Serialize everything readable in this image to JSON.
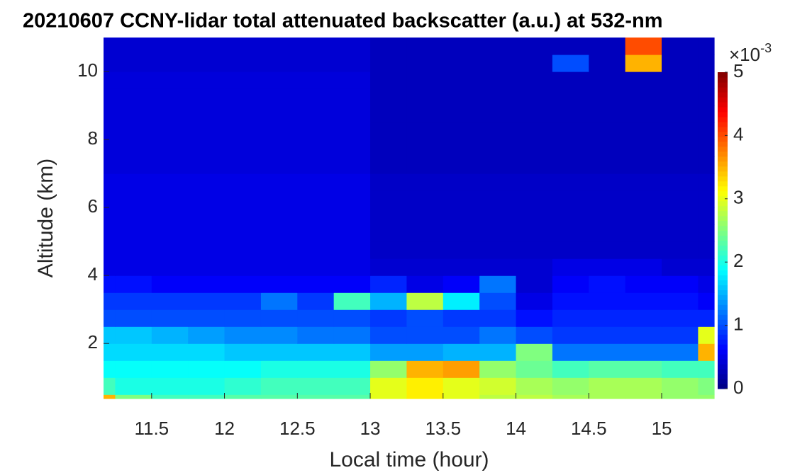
{
  "chart_data": {
    "type": "heatmap",
    "title": "20210607 CCNY-lidar total attenuated backscatter (a.u.) at 532-nm",
    "x_label": "Local time (hour)",
    "y_label": "Altitude (km)",
    "xlim": [
      11.17,
      15.36
    ],
    "ylim": [
      0.38,
      11
    ],
    "xticks": [
      11.5,
      12,
      12.5,
      13,
      13.5,
      14,
      14.5,
      15
    ],
    "yticks": [
      2,
      4,
      6,
      8,
      10
    ],
    "x_edges": [
      11.17,
      11.25,
      11.5,
      11.75,
      12,
      12.25,
      12.5,
      12.75,
      13,
      13.25,
      13.5,
      13.75,
      14,
      14.25,
      14.5,
      14.75,
      15,
      15.25,
      15.36
    ],
    "y_edges": [
      0.38,
      0.5,
      1,
      1.5,
      2,
      2.5,
      3,
      3.5,
      4,
      4.5,
      5,
      5.5,
      6,
      6.5,
      7,
      7.5,
      8,
      8.5,
      9,
      9.5,
      10,
      10.5,
      11
    ],
    "values": [
      [
        3.5,
        2.5,
        2.2,
        2.2,
        2.3,
        2.3,
        2.3,
        2.3,
        3.0,
        3.2,
        3.0,
        2.8,
        2.8,
        2.7,
        2.7,
        2.7,
        2.6,
        2.6
      ],
      [
        2.2,
        2.0,
        2.0,
        2.0,
        2.1,
        2.2,
        2.2,
        2.2,
        3.0,
        3.2,
        3.0,
        2.9,
        2.7,
        2.6,
        2.7,
        2.7,
        2.6,
        2.5
      ],
      [
        1.9,
        1.9,
        1.9,
        1.9,
        1.9,
        2.0,
        2.0,
        2.0,
        2.6,
        3.5,
        3.6,
        2.6,
        2.4,
        2.2,
        2.3,
        2.3,
        2.2,
        2.2
      ],
      [
        1.7,
        1.7,
        1.7,
        1.7,
        1.6,
        1.6,
        1.6,
        1.6,
        1.4,
        1.4,
        1.5,
        1.5,
        2.5,
        1.2,
        1.2,
        1.2,
        1.2,
        3.5
      ],
      [
        1.6,
        1.6,
        1.5,
        1.4,
        1.3,
        1.3,
        1.2,
        1.2,
        1.0,
        1.0,
        1.0,
        1.2,
        1.0,
        0.9,
        0.9,
        0.9,
        0.9,
        3.0
      ],
      [
        1.0,
        1.0,
        1.0,
        1.0,
        1.0,
        1.0,
        1.0,
        1.0,
        0.9,
        1.0,
        0.9,
        0.9,
        0.7,
        0.8,
        0.8,
        0.8,
        0.8,
        0.8
      ],
      [
        0.9,
        0.9,
        0.9,
        0.9,
        0.9,
        1.2,
        0.9,
        2.2,
        1.5,
        2.8,
        1.8,
        1.0,
        0.5,
        0.7,
        0.7,
        0.7,
        0.7,
        0.6
      ],
      [
        0.7,
        0.7,
        0.6,
        0.6,
        0.6,
        0.6,
        0.6,
        0.6,
        0.8,
        0.5,
        0.6,
        1.2,
        0.4,
        0.6,
        0.7,
        0.6,
        0.6,
        0.5
      ],
      [
        0.5,
        0.5,
        0.5,
        0.5,
        0.5,
        0.5,
        0.5,
        0.5,
        0.4,
        0.4,
        0.4,
        0.4,
        0.4,
        0.5,
        0.5,
        0.5,
        0.4,
        0.4
      ],
      [
        0.5,
        0.5,
        0.5,
        0.5,
        0.5,
        0.5,
        0.5,
        0.5,
        0.35,
        0.35,
        0.35,
        0.35,
        0.35,
        0.35,
        0.35,
        0.35,
        0.35,
        0.35
      ],
      [
        0.5,
        0.5,
        0.5,
        0.5,
        0.5,
        0.5,
        0.5,
        0.5,
        0.35,
        0.35,
        0.35,
        0.35,
        0.35,
        0.35,
        0.35,
        0.35,
        0.35,
        0.35
      ],
      [
        0.5,
        0.5,
        0.5,
        0.5,
        0.5,
        0.5,
        0.5,
        0.5,
        0.35,
        0.35,
        0.35,
        0.35,
        0.35,
        0.35,
        0.35,
        0.35,
        0.35,
        0.35
      ],
      [
        0.5,
        0.5,
        0.5,
        0.5,
        0.5,
        0.5,
        0.5,
        0.5,
        0.35,
        0.35,
        0.35,
        0.35,
        0.35,
        0.35,
        0.35,
        0.35,
        0.35,
        0.35
      ],
      [
        0.5,
        0.5,
        0.5,
        0.5,
        0.5,
        0.5,
        0.5,
        0.5,
        0.35,
        0.35,
        0.35,
        0.35,
        0.35,
        0.35,
        0.35,
        0.35,
        0.35,
        0.35
      ],
      [
        0.45,
        0.45,
        0.45,
        0.45,
        0.45,
        0.45,
        0.45,
        0.45,
        0.3,
        0.3,
        0.3,
        0.3,
        0.3,
        0.3,
        0.3,
        0.3,
        0.3,
        0.3
      ],
      [
        0.45,
        0.45,
        0.45,
        0.45,
        0.45,
        0.45,
        0.45,
        0.45,
        0.3,
        0.3,
        0.3,
        0.3,
        0.3,
        0.3,
        0.3,
        0.3,
        0.3,
        0.3
      ],
      [
        0.45,
        0.45,
        0.45,
        0.45,
        0.45,
        0.45,
        0.45,
        0.45,
        0.3,
        0.3,
        0.3,
        0.3,
        0.3,
        0.3,
        0.3,
        0.3,
        0.3,
        0.3
      ],
      [
        0.45,
        0.45,
        0.45,
        0.45,
        0.45,
        0.45,
        0.45,
        0.45,
        0.3,
        0.3,
        0.3,
        0.3,
        0.3,
        0.3,
        0.3,
        0.3,
        0.3,
        0.3
      ],
      [
        0.45,
        0.45,
        0.45,
        0.45,
        0.45,
        0.45,
        0.45,
        0.45,
        0.3,
        0.3,
        0.3,
        0.3,
        0.3,
        0.3,
        0.3,
        0.3,
        0.3,
        0.3
      ],
      [
        0.45,
        0.45,
        0.45,
        0.45,
        0.45,
        0.45,
        0.45,
        0.45,
        0.3,
        0.3,
        0.3,
        0.3,
        0.3,
        0.3,
        0.3,
        0.3,
        0.3,
        0.3
      ],
      [
        0.4,
        0.4,
        0.4,
        0.4,
        0.4,
        0.4,
        0.4,
        0.4,
        0.3,
        0.3,
        0.3,
        0.3,
        0.3,
        1.0,
        0.3,
        3.5,
        0.3,
        0.3
      ],
      [
        0.4,
        0.4,
        0.4,
        0.4,
        0.4,
        0.4,
        0.4,
        0.4,
        0.3,
        0.3,
        0.3,
        0.3,
        0.3,
        0.3,
        0.3,
        4.0,
        0.3,
        0.3
      ]
    ],
    "clim": [
      0,
      5
    ],
    "cticks": [
      0,
      1,
      2,
      3,
      4,
      5
    ],
    "colormap": "jet",
    "colorbar_multiplier": "×10",
    "colorbar_exponent": "-3"
  }
}
